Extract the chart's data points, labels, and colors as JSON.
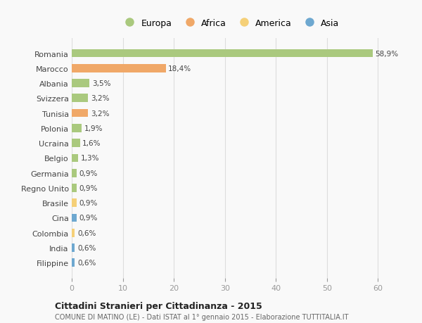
{
  "countries": [
    "Romania",
    "Marocco",
    "Albania",
    "Svizzera",
    "Tunisia",
    "Polonia",
    "Ucraina",
    "Belgio",
    "Germania",
    "Regno Unito",
    "Brasile",
    "Cina",
    "Colombia",
    "India",
    "Filippine"
  ],
  "values": [
    58.9,
    18.4,
    3.5,
    3.2,
    3.2,
    1.9,
    1.6,
    1.3,
    0.9,
    0.9,
    0.9,
    0.9,
    0.6,
    0.6,
    0.6
  ],
  "labels": [
    "58,9%",
    "18,4%",
    "3,5%",
    "3,2%",
    "3,2%",
    "1,9%",
    "1,6%",
    "1,3%",
    "0,9%",
    "0,9%",
    "0,9%",
    "0,9%",
    "0,6%",
    "0,6%",
    "0,6%"
  ],
  "colors": [
    "#aac97e",
    "#f0a868",
    "#aac97e",
    "#aac97e",
    "#f0a868",
    "#aac97e",
    "#aac97e",
    "#aac97e",
    "#aac97e",
    "#aac97e",
    "#f5d078",
    "#6ea8d0",
    "#f5d078",
    "#6ea8d0",
    "#6ea8d0"
  ],
  "legend_labels": [
    "Europa",
    "Africa",
    "America",
    "Asia"
  ],
  "legend_colors": [
    "#aac97e",
    "#f0a868",
    "#f5d078",
    "#6ea8d0"
  ],
  "title": "Cittadini Stranieri per Cittadinanza - 2015",
  "subtitle": "COMUNE DI MATINO (LE) - Dati ISTAT al 1° gennaio 2015 - Elaborazione TUTTITALIA.IT",
  "xlim": [
    0,
    62
  ],
  "xticks": [
    0,
    10,
    20,
    30,
    40,
    50,
    60
  ],
  "background_color": "#f9f9f9",
  "grid_color": "#dddddd",
  "bar_height": 0.55
}
